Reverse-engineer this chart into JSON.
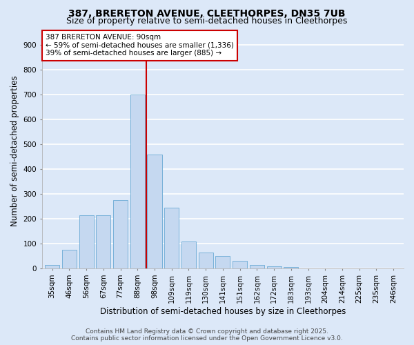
{
  "title1": "387, BRERETON AVENUE, CLEETHORPES, DN35 7UB",
  "title2": "Size of property relative to semi-detached houses in Cleethorpes",
  "xlabel": "Distribution of semi-detached houses by size in Cleethorpes",
  "ylabel": "Number of semi-detached properties",
  "bin_labels": [
    "35sqm",
    "46sqm",
    "56sqm",
    "67sqm",
    "77sqm",
    "88sqm",
    "98sqm",
    "109sqm",
    "119sqm",
    "130sqm",
    "141sqm",
    "151sqm",
    "162sqm",
    "172sqm",
    "183sqm",
    "193sqm",
    "204sqm",
    "214sqm",
    "225sqm",
    "235sqm",
    "246sqm"
  ],
  "bar_values": [
    15,
    75,
    215,
    215,
    275,
    700,
    460,
    245,
    110,
    65,
    50,
    30,
    15,
    10,
    5,
    0,
    0,
    0,
    0,
    0,
    0
  ],
  "bar_color": "#c5d8f0",
  "bar_edge_color": "#6aaad4",
  "background_color": "#dce8f8",
  "grid_color": "#ffffff",
  "vline_x": 5.5,
  "vline_color": "#cc0000",
  "annotation_title": "387 BRERETON AVENUE: 90sqm",
  "annotation_line1": "← 59% of semi-detached houses are smaller (1,336)",
  "annotation_line2": "39% of semi-detached houses are larger (885) →",
  "annotation_box_color": "#ffffff",
  "annotation_box_edge": "#cc0000",
  "ylim": [
    0,
    950
  ],
  "yticks": [
    0,
    100,
    200,
    300,
    400,
    500,
    600,
    700,
    800,
    900
  ],
  "footer1": "Contains HM Land Registry data © Crown copyright and database right 2025.",
  "footer2": "Contains public sector information licensed under the Open Government Licence v3.0.",
  "title_fontsize": 10,
  "subtitle_fontsize": 9,
  "axis_label_fontsize": 8.5,
  "tick_fontsize": 7.5,
  "footer_fontsize": 6.5,
  "ann_fontsize": 7.5
}
